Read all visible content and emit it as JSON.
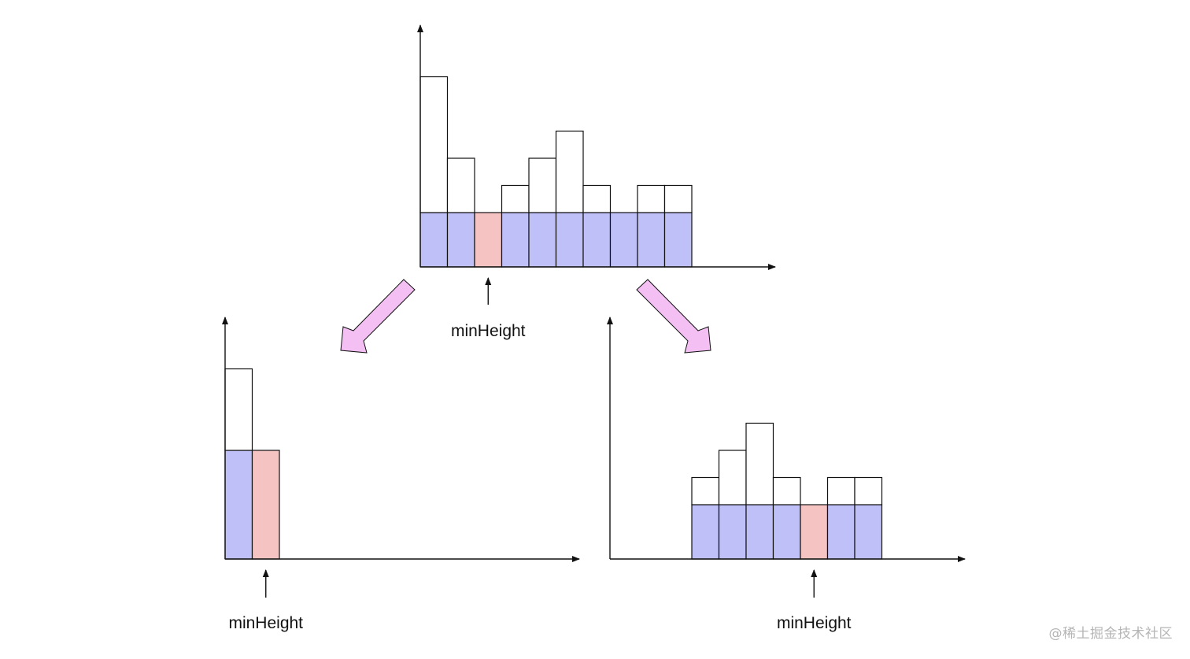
{
  "colors": {
    "background": "#ffffff",
    "stroke": "#111111",
    "bar_empty": "#ffffff",
    "bar_filled": "#bfc0f7",
    "bar_min": "#f4c3c2",
    "split_arrow": "#f4c0f4"
  },
  "pointer_label": "minHeight",
  "watermark": "@稀土掘金技术社区",
  "chart_data": [
    {
      "id": "top",
      "type": "bar",
      "series": [
        {
          "name": "heights",
          "values": [
            7,
            4,
            2,
            3,
            4,
            5,
            3,
            2,
            3,
            3
          ]
        }
      ],
      "min_value": 2,
      "min_index": 2,
      "label": "minHeight"
    },
    {
      "id": "bottom-left",
      "type": "bar",
      "series": [
        {
          "name": "heights",
          "values": [
            7,
            4
          ]
        }
      ],
      "min_value": 4,
      "min_index": 1,
      "label": "minHeight"
    },
    {
      "id": "bottom-right",
      "type": "bar",
      "series": [
        {
          "name": "heights",
          "values": [
            3,
            4,
            5,
            3,
            2,
            3,
            3
          ]
        }
      ],
      "min_value": 2,
      "min_index": 4,
      "label": "minHeight"
    }
  ]
}
